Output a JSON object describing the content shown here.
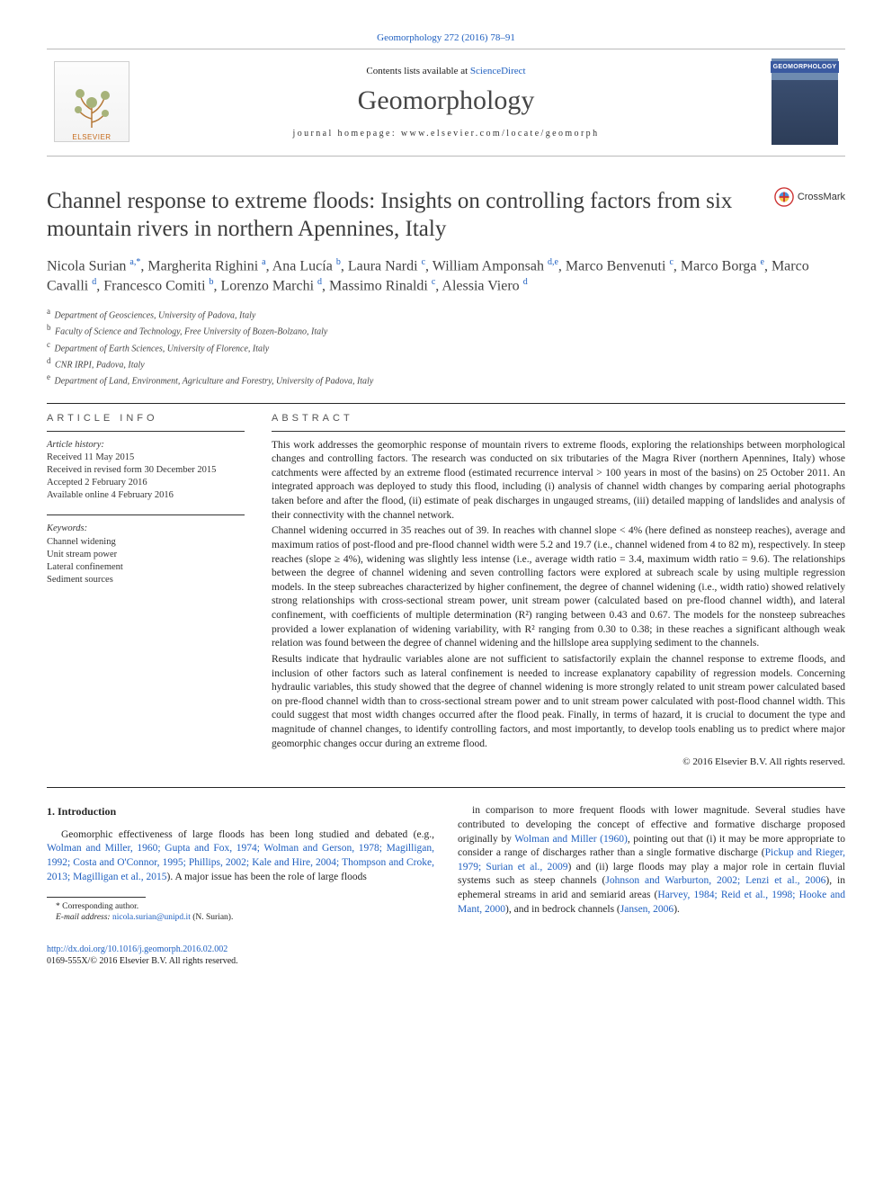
{
  "citation": {
    "journal": "Geomorphology",
    "vol_issue_pages": "272 (2016) 78–91"
  },
  "header": {
    "contents_pre": "Contents lists available at ",
    "contents_link": "ScienceDirect",
    "journal": "Geomorphology",
    "homepage_pre": "journal homepage: ",
    "homepage_url": "www.elsevier.com/locate/geomorph",
    "elsevier_label": "ELSEVIER",
    "cover_label": "GEOMORPHOLOGY"
  },
  "crossmark": "CrossMark",
  "title": "Channel response to extreme floods: Insights on controlling factors from six mountain rivers in northern Apennines, Italy",
  "authors_html": "Nicola Surian <sup>a,*</sup>, Margherita Righini <sup>a</sup>, Ana Lucía <sup>b</sup>, Laura Nardi <sup>c</sup>, William Amponsah <sup>d,e</sup>, Marco Benvenuti <sup>c</sup>, Marco Borga <sup>e</sup>, Marco Cavalli <sup>d</sup>, Francesco Comiti <sup>b</sup>, Lorenzo Marchi <sup>d</sup>, Massimo Rinaldi <sup>c</sup>, Alessia Viero <sup>d</sup>",
  "affiliations": [
    {
      "k": "a",
      "t": "Department of Geosciences, University of Padova, Italy"
    },
    {
      "k": "b",
      "t": "Faculty of Science and Technology, Free University of Bozen-Bolzano, Italy"
    },
    {
      "k": "c",
      "t": "Department of Earth Sciences, University of Florence, Italy"
    },
    {
      "k": "d",
      "t": "CNR IRPI, Padova, Italy"
    },
    {
      "k": "e",
      "t": "Department of Land, Environment, Agriculture and Forestry, University of Padova, Italy"
    }
  ],
  "article_info": {
    "heading": "ARTICLE INFO",
    "history_label": "Article history:",
    "history": [
      "Received 11 May 2015",
      "Received in revised form 30 December 2015",
      "Accepted 2 February 2016",
      "Available online 4 February 2016"
    ],
    "keywords_label": "Keywords:",
    "keywords": [
      "Channel widening",
      "Unit stream power",
      "Lateral confinement",
      "Sediment sources"
    ]
  },
  "abstract": {
    "heading": "ABSTRACT",
    "paragraphs": [
      "This work addresses the geomorphic response of mountain rivers to extreme floods, exploring the relationships between morphological changes and controlling factors. The research was conducted on six tributaries of the Magra River (northern Apennines, Italy) whose catchments were affected by an extreme flood (estimated recurrence interval > 100 years in most of the basins) on 25 October 2011. An integrated approach was deployed to study this flood, including (i) analysis of channel width changes by comparing aerial photographs taken before and after the flood, (ii) estimate of peak discharges in ungauged streams, (iii) detailed mapping of landslides and analysis of their connectivity with the channel network.",
      "Channel widening occurred in 35 reaches out of 39. In reaches with channel slope < 4% (here defined as nonsteep reaches), average and maximum ratios of post-flood and pre-flood channel width were 5.2 and 19.7 (i.e., channel widened from 4 to 82 m), respectively. In steep reaches (slope ≥ 4%), widening was slightly less intense (i.e., average width ratio = 3.4, maximum width ratio = 9.6). The relationships between the degree of channel widening and seven controlling factors were explored at subreach scale by using multiple regression models. In the steep subreaches characterized by higher confinement, the degree of channel widening (i.e., width ratio) showed relatively strong relationships with cross-sectional stream power, unit stream power (calculated based on pre-flood channel width), and lateral confinement, with coefficients of multiple determination (R²) ranging between 0.43 and 0.67. The models for the nonsteep subreaches provided a lower explanation of widening variability, with R² ranging from 0.30 to 0.38; in these reaches a significant although weak relation was found between the degree of channel widening and the hillslope area supplying sediment to the channels.",
      "Results indicate that hydraulic variables alone are not sufficient to satisfactorily explain the channel response to extreme floods, and inclusion of other factors such as lateral confinement is needed to increase explanatory capability of regression models. Concerning hydraulic variables, this study showed that the degree of channel widening is more strongly related to unit stream power calculated based on pre-flood channel width than to cross-sectional stream power and to unit stream power calculated with post-flood channel width. This could suggest that most width changes occurred after the flood peak. Finally, in terms of hazard, it is crucial to document the type and magnitude of channel changes, to identify controlling factors, and most importantly, to develop tools enabling us to predict where major geomorphic changes occur during an extreme flood."
    ],
    "copyright": "© 2016 Elsevier B.V. All rights reserved."
  },
  "body": {
    "heading": "1. Introduction",
    "left": "Geomorphic effectiveness of large floods has been long studied and debated (e.g., <a href=\"#\">Wolman and Miller, 1960; Gupta and Fox, 1974; Wolman and Gerson, 1978; Magilligan, 1992; Costa and O'Connor, 1995; Phillips, 2002; Kale and Hire, 2004; Thompson and Croke, 2013; Magilligan et al., 2015</a>). A major issue has been the role of large floods",
    "right": "in comparison to more frequent floods with lower magnitude. Several studies have contributed to developing the concept of effective and formative discharge proposed originally by <a href=\"#\">Wolman and Miller (1960)</a>, pointing out that (i) it may be more appropriate to consider a range of discharges rather than a single formative discharge (<a href=\"#\">Pickup and Rieger, 1979; Surian et al., 2009</a>) and (ii) large floods may play a major role in certain fluvial systems such as steep channels (<a href=\"#\">Johnson and Warburton, 2002; Lenzi et al., 2006</a>), in ephemeral streams in arid and semiarid areas (<a href=\"#\">Harvey, 1984; Reid et al., 1998; Hooke and Mant, 2000</a>), and in bedrock channels (<a href=\"#\">Jansen, 2006</a>)."
  },
  "footnote": {
    "corr": "* Corresponding author.",
    "email_label": "E-mail address:",
    "email": "nicola.surian@unipd.it",
    "email_paren": "(N. Surian)."
  },
  "footer": {
    "doi": "http://dx.doi.org/10.1016/j.geomorph.2016.02.002",
    "issn_line": "0169-555X/© 2016 Elsevier B.V. All rights reserved."
  }
}
